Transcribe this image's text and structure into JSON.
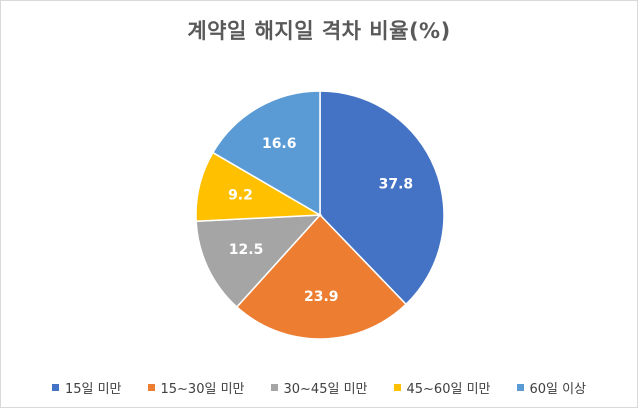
{
  "chart_data": {
    "type": "pie",
    "title": "계약일 해지일 격차 비율(%)",
    "categories": [
      "15일 미만",
      "15~30일 미만",
      "30~45일 미만",
      "45~60일 미만",
      "60일 이상"
    ],
    "values": [
      37.8,
      23.9,
      12.5,
      9.2,
      16.6
    ],
    "value_labels": [
      "37.8",
      "23.9",
      "12.5",
      "9.2",
      "16.6"
    ],
    "colors": [
      "#4472C4",
      "#ED7D31",
      "#A5A5A5",
      "#FFC000",
      "#5B9BD5"
    ],
    "start_angle": "12 o'clock, clockwise",
    "legend_position": "bottom"
  }
}
